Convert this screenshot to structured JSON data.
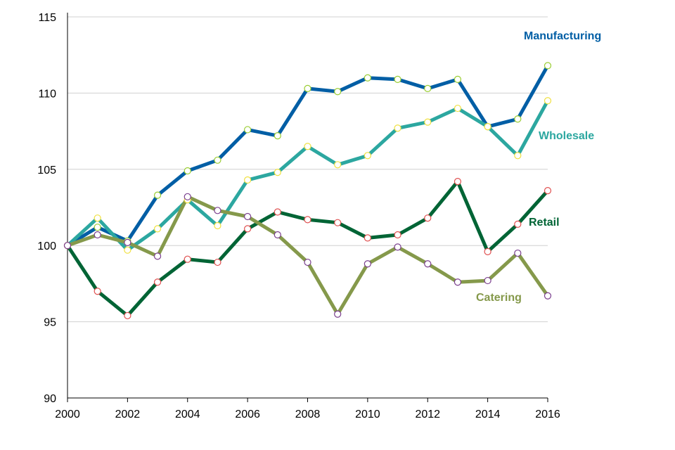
{
  "chart_data": {
    "type": "line",
    "title": "",
    "xlabel": "",
    "ylabel": "",
    "x": [
      2000,
      2001,
      2002,
      2003,
      2004,
      2005,
      2006,
      2007,
      2008,
      2009,
      2010,
      2011,
      2012,
      2013,
      2014,
      2015,
      2016
    ],
    "xticks": [
      2000,
      2002,
      2004,
      2006,
      2008,
      2010,
      2012,
      2014,
      2016
    ],
    "yticks": [
      90,
      95,
      100,
      105,
      110,
      115
    ],
    "ylim": [
      90,
      115
    ],
    "xlim": [
      2000,
      2016
    ],
    "grid": "horizontal",
    "legend": "inline labels next to lines",
    "series": [
      {
        "name": "Manufacturing",
        "color": "#005ea5",
        "marker_stroke": "#9acd32",
        "values": [
          100.0,
          101.2,
          100.3,
          103.3,
          104.9,
          105.6,
          107.6,
          107.2,
          110.3,
          110.1,
          111.0,
          110.9,
          110.3,
          110.9,
          107.8,
          108.3,
          111.8
        ]
      },
      {
        "name": "Wholesale",
        "color": "#2ca7a0",
        "marker_stroke": "#f0e040",
        "values": [
          100.0,
          101.8,
          99.7,
          101.1,
          103.0,
          101.3,
          104.3,
          104.8,
          106.5,
          105.3,
          105.9,
          107.7,
          108.1,
          109.0,
          107.8,
          105.9,
          109.5
        ]
      },
      {
        "name": "Retail",
        "color": "#006435",
        "marker_stroke": "#e05050",
        "values": [
          100.0,
          97.0,
          95.4,
          97.6,
          99.1,
          98.9,
          101.1,
          102.2,
          101.7,
          101.5,
          100.5,
          100.7,
          101.8,
          104.2,
          99.6,
          101.4,
          103.6
        ]
      },
      {
        "name": "Catering",
        "color": "#85994b",
        "marker_stroke": "#7a3e8e",
        "values": [
          100.0,
          100.7,
          100.2,
          99.3,
          103.2,
          102.3,
          101.9,
          100.7,
          98.9,
          95.5,
          98.8,
          99.9,
          98.8,
          97.6,
          97.7,
          99.5,
          96.7
        ]
      }
    ]
  }
}
